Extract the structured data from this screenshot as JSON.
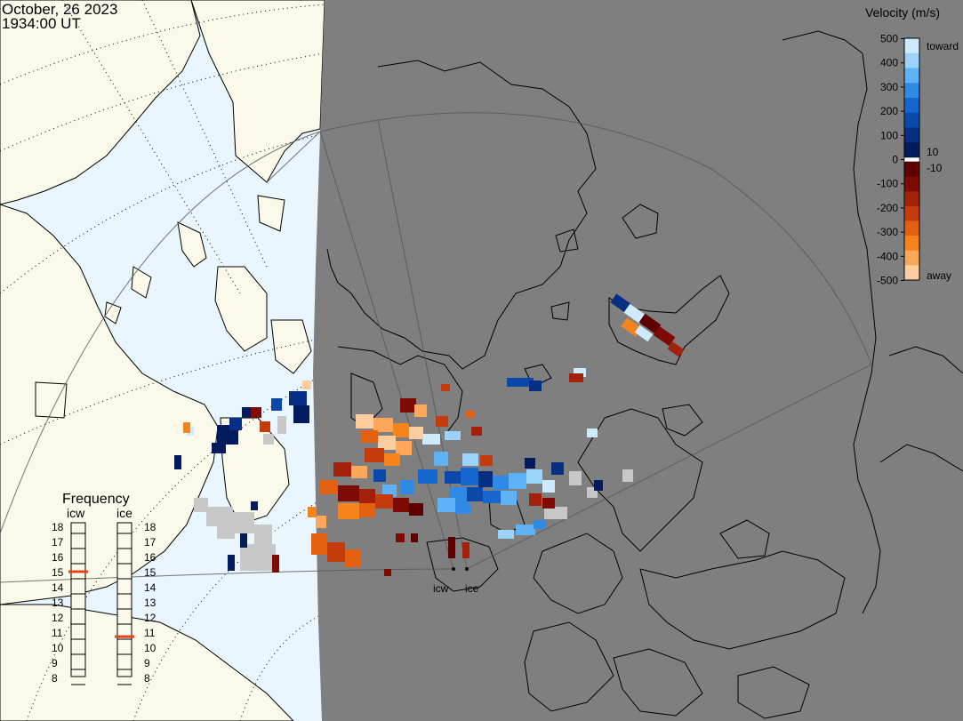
{
  "title": {
    "date": "October, 26 2023",
    "time": "1934:00 UT"
  },
  "colorbar": {
    "title": "Velocity (m/s)",
    "tick_values": [
      "500",
      "400",
      "300",
      "200",
      "100",
      "0",
      "-100",
      "-200",
      "-300",
      "-400",
      "-500"
    ],
    "inner_labels": [
      "10",
      "-10"
    ],
    "toward_label": "toward",
    "away_label": "away",
    "colors": {
      "toward": [
        "#cfeafd",
        "#9bd3fb",
        "#5fb2f5",
        "#2f8ae6",
        "#1566cf",
        "#0a48aa",
        "#062e82",
        "#031a5c"
      ],
      "away": [
        "#5e0000",
        "#7e0a04",
        "#a3200a",
        "#c43c0d",
        "#e2600f",
        "#f5841d",
        "#fba85a",
        "#fdcda0"
      ]
    }
  },
  "frequency_panel": {
    "title": "Frequency",
    "tick_labels": [
      "18",
      "17",
      "16",
      "15",
      "14",
      "13",
      "12",
      "11",
      "10",
      "9",
      "8"
    ],
    "radars": [
      {
        "name": "icw",
        "frequency_mhz": 15.0
      },
      {
        "name": "ice",
        "frequency_mhz": 10.7
      }
    ],
    "marker_color": "#e0431b"
  },
  "site_labels": [
    "icw",
    "ice"
  ],
  "colors": {
    "land": "#fbfaea",
    "ocean": "#e9f5ff",
    "night": "#7f7f7f",
    "ground_scatter": "#c8c8c8"
  }
}
